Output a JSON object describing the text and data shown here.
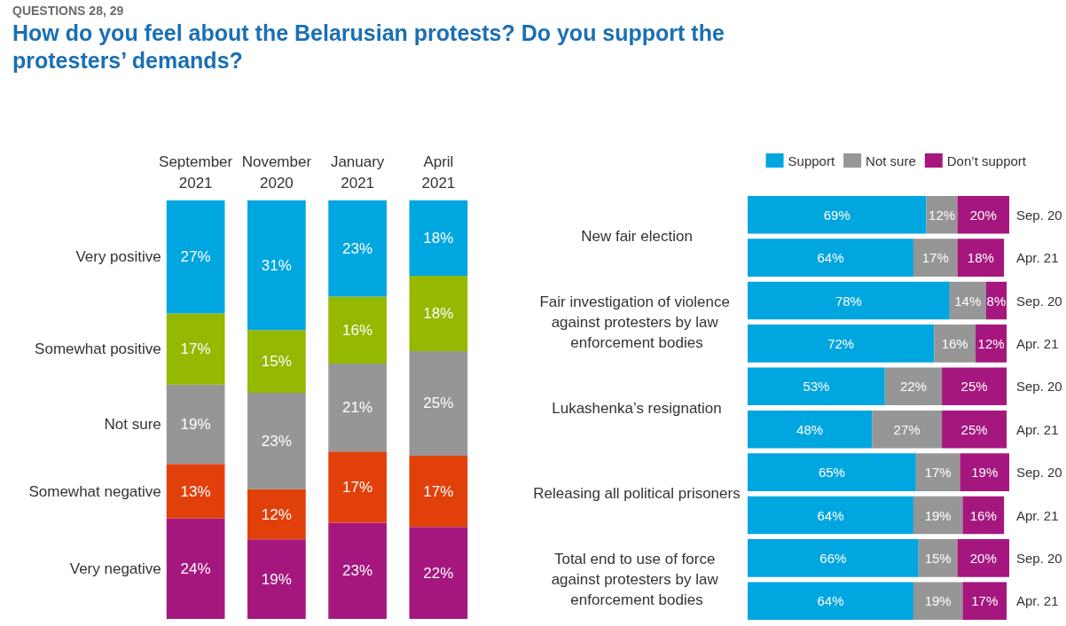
{
  "chart_data": [
    {
      "type": "bar",
      "subtitle": "QUESTIONS 28, 29",
      "title": "How do you feel about the Belarusian protests? Do you support the protesters’ demands?",
      "stacked": true,
      "categories": [
        "September 2021",
        "November 2020",
        "January 2021",
        "April 2021"
      ],
      "series": [
        {
          "name": "Very negative",
          "color": "#a5177e",
          "values": [
            24,
            19,
            23,
            22
          ],
          "value_labels": [
            "24%",
            "19%",
            "23%",
            "22%"
          ]
        },
        {
          "name": "Somewhat negative",
          "color": "#e2400b",
          "values": [
            13,
            12,
            17,
            17
          ],
          "value_labels": [
            "13%",
            "12%",
            "17%",
            "17%"
          ]
        },
        {
          "name": "Not sure",
          "color": "#969696",
          "values": [
            19,
            23,
            21,
            25
          ],
          "value_labels": [
            "19%",
            "23%",
            "21%",
            "25%"
          ]
        },
        {
          "name": "Somewhat positive",
          "color": "#95b800",
          "values": [
            17,
            15,
            16,
            18
          ],
          "value_labels": [
            "17%",
            "15%",
            "16%",
            "18%"
          ]
        },
        {
          "name": "Very positive",
          "color": "#00a6e0",
          "values": [
            27,
            31,
            23,
            18
          ],
          "value_labels": [
            "27%",
            "31%",
            "23%",
            "18%"
          ]
        }
      ]
    },
    {
      "type": "bar",
      "orientation": "horizontal",
      "stacked": true,
      "legend": "top right",
      "categories": [
        "Sep. 20",
        "Apr. 21",
        "Sep. 20",
        "Apr. 21",
        "Sep. 20",
        "Apr. 21",
        "Sep. 20",
        "Apr. 21",
        "Sep. 20",
        "Apr. 21"
      ],
      "annotations": [
        "New fair election",
        "Fair investigation of violence against protesters by law enforcement bodies",
        "Lukashenka’s resignation",
        "Releasing all political prisoners",
        "Total end to use of force against protesters by law enforcement bodies"
      ],
      "series": [
        {
          "name": "Support",
          "color": "#00a6e0",
          "values": [
            69,
            64,
            78,
            72,
            53,
            48,
            65,
            64,
            66,
            64
          ],
          "value_labels": [
            "69%",
            "64%",
            "78%",
            "72%",
            "53%",
            "48%",
            "65%",
            "64%",
            "66%",
            "64%"
          ]
        },
        {
          "name": "Not sure",
          "color": "#969696",
          "values": [
            12,
            17,
            14,
            16,
            22,
            27,
            17,
            19,
            15,
            19
          ],
          "value_labels": [
            "12%",
            "17%",
            "14%",
            "16%",
            "22%",
            "27%",
            "17%",
            "19%",
            "15%",
            "19%"
          ]
        },
        {
          "name": "Don’t support",
          "color": "#a5177e",
          "values": [
            20,
            18,
            8,
            12,
            25,
            25,
            19,
            16,
            20,
            17
          ],
          "value_labels": [
            "20%",
            "18%",
            "8%",
            "12%",
            "25%",
            "25%",
            "19%",
            "16%",
            "20%",
            "17%"
          ]
        }
      ]
    }
  ]
}
